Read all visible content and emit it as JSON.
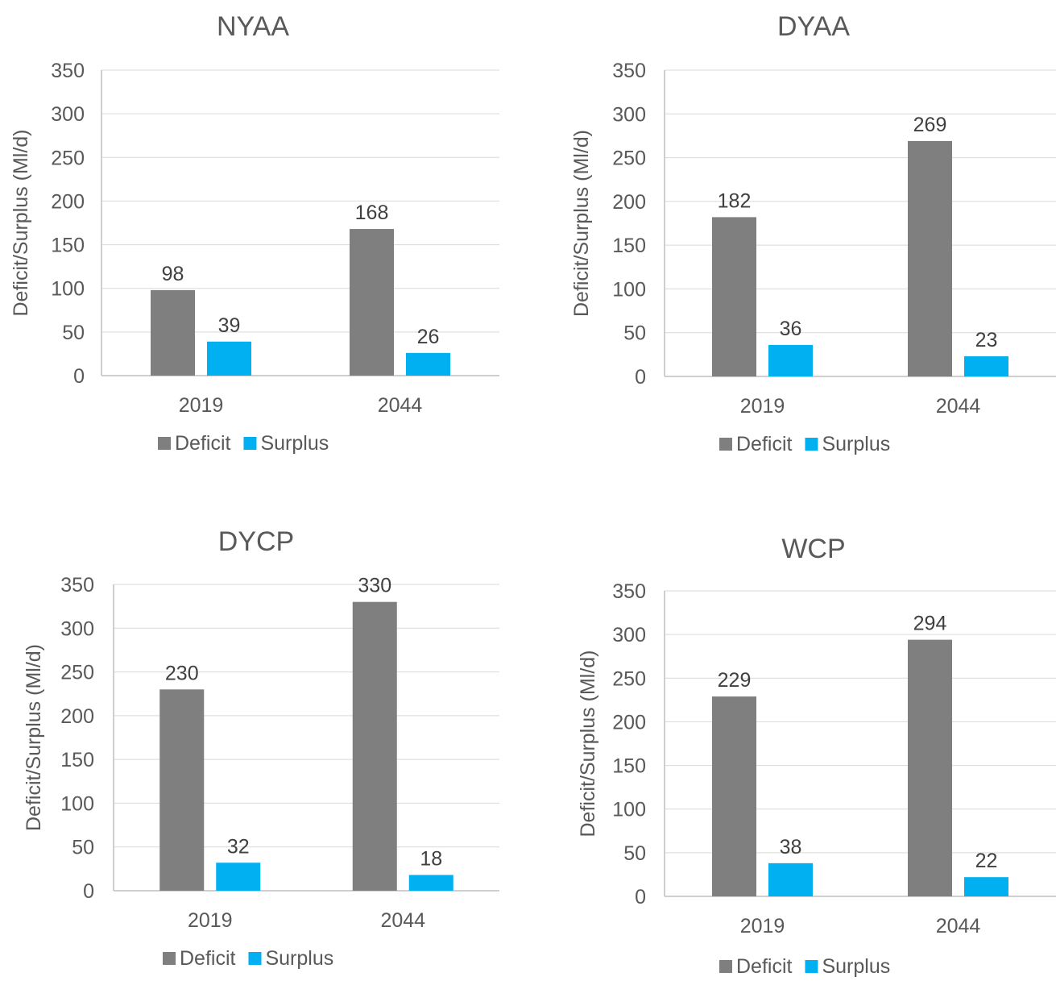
{
  "colors": {
    "deficit": "#7f7f7f",
    "surplus": "#00b0f0",
    "grid": "#d9d9d9",
    "axis": "#bfbfbf",
    "text": "#595959"
  },
  "chart_data": [
    {
      "type": "bar",
      "title": "NYAA",
      "categories": [
        "2019",
        "2044"
      ],
      "series": [
        {
          "name": "Deficit",
          "values": [
            98,
            168
          ]
        },
        {
          "name": "Surplus",
          "values": [
            39,
            26
          ]
        }
      ],
      "xlabel": "",
      "ylabel": "Deficit/Surplus (Ml/d)",
      "ylim": [
        0,
        350
      ],
      "yticks": [
        0,
        50,
        100,
        150,
        200,
        250,
        300,
        350
      ],
      "grid": true,
      "legend": "bottom"
    },
    {
      "type": "bar",
      "title": "DYAA",
      "categories": [
        "2019",
        "2044"
      ],
      "series": [
        {
          "name": "Deficit",
          "values": [
            182,
            269
          ]
        },
        {
          "name": "Surplus",
          "values": [
            36,
            23
          ]
        }
      ],
      "xlabel": "",
      "ylabel": "Deficit/Surplus (Ml/d)",
      "ylim": [
        0,
        350
      ],
      "yticks": [
        0,
        50,
        100,
        150,
        200,
        250,
        300,
        350
      ],
      "grid": true,
      "legend": "bottom"
    },
    {
      "type": "bar",
      "title": "DYCP",
      "categories": [
        "2019",
        "2044"
      ],
      "series": [
        {
          "name": "Deficit",
          "values": [
            230,
            330
          ]
        },
        {
          "name": "Surplus",
          "values": [
            32,
            18
          ]
        }
      ],
      "xlabel": "",
      "ylabel": "Deficit/Surplus (Ml/d)",
      "ylim": [
        0,
        350
      ],
      "yticks": [
        0,
        50,
        100,
        150,
        200,
        250,
        300,
        350
      ],
      "grid": true,
      "legend": "bottom"
    },
    {
      "type": "bar",
      "title": "WCP",
      "categories": [
        "2019",
        "2044"
      ],
      "series": [
        {
          "name": "Deficit",
          "values": [
            229,
            294
          ]
        },
        {
          "name": "Surplus",
          "values": [
            38,
            22
          ]
        }
      ],
      "xlabel": "",
      "ylabel": "Deficit/Surplus (Ml/d)",
      "ylim": [
        0,
        350
      ],
      "yticks": [
        0,
        50,
        100,
        150,
        200,
        250,
        300,
        350
      ],
      "grid": true,
      "legend": "bottom"
    }
  ]
}
